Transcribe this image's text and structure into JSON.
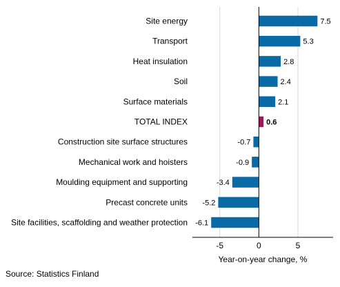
{
  "chart_data": {
    "type": "bar",
    "orientation": "horizontal",
    "categories": [
      "Site energy",
      "Transport",
      "Heat insulation",
      "Soil",
      "Surface materials",
      "TOTAL INDEX",
      "Construction site surface structures",
      "Mechanical work and hoisters",
      "Moulding equipment and supporting",
      "Precast concrete units",
      "Site facilities, scaffolding and weather protection"
    ],
    "values": [
      7.5,
      5.3,
      2.8,
      2.4,
      2.1,
      0.6,
      -0.7,
      -0.9,
      -3.4,
      -5.2,
      -6.1
    ],
    "value_labels": [
      "7.5",
      "5.3",
      "2.8",
      "2.4",
      "2.1",
      "0.6",
      "-0.7",
      "-0.9",
      "-3.4",
      "-5.2",
      "-6.1"
    ],
    "highlight": "TOTAL INDEX",
    "xlim": [
      -8.5,
      9.5
    ],
    "xticks": [
      -5,
      0,
      5
    ],
    "xtick_labels": [
      "-5",
      "0",
      "5"
    ],
    "xlabel": "Year-on-year change, %",
    "grid": "vertical",
    "colors": {
      "bar": "#0a6aa6",
      "highlight": "#a0155b",
      "grid": "#d9d9d9"
    }
  },
  "source": "Source: Statistics Finland"
}
